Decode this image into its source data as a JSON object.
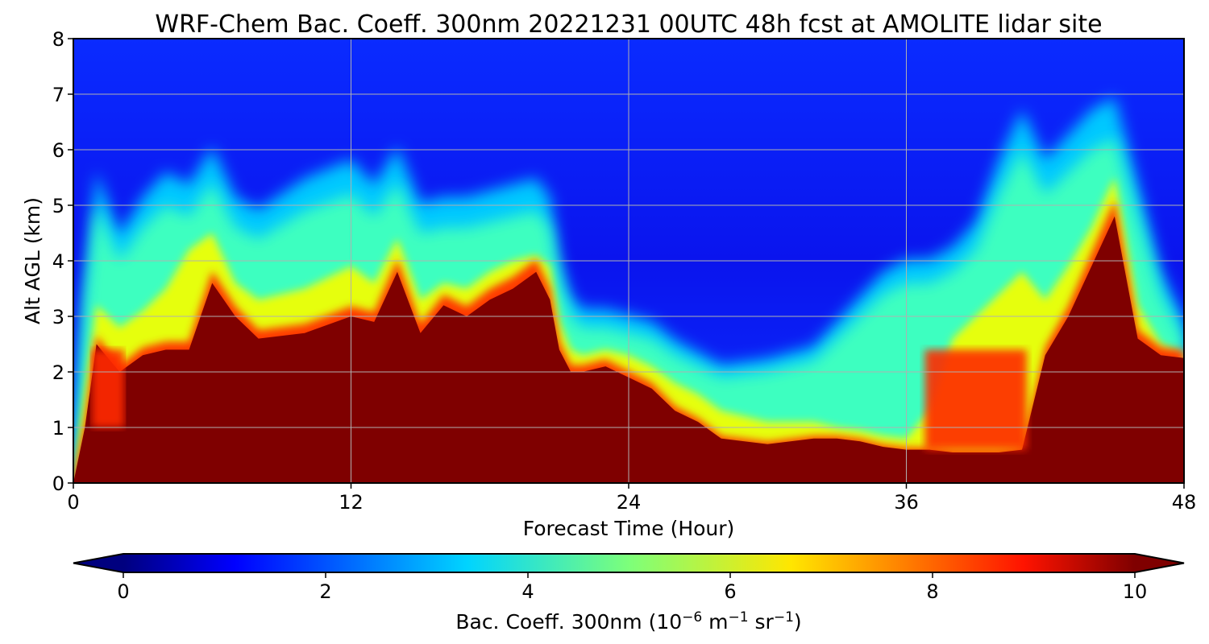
{
  "chart_data": {
    "type": "heatmap",
    "title": "WRF-Chem Bac. Coeff. 300nm  20221231 00UTC 48h fcst at AMOLITE lidar site",
    "xlabel": "Forecast Time (Hour)",
    "ylabel": "Alt AGL (km)",
    "xlim": [
      0,
      48
    ],
    "ylim": [
      0,
      8
    ],
    "xticks": [
      "0",
      "12",
      "24",
      "36",
      "48"
    ],
    "yticks": [
      "0",
      "1",
      "2",
      "3",
      "4",
      "5",
      "6",
      "7",
      "8"
    ],
    "grid": true,
    "colormap": "jet",
    "colorbar": {
      "label_prefix": "Bac. Coeff. 300nm  (10",
      "exp1": "−6",
      "mid1": " m",
      "exp2": "−1",
      "mid2": " sr",
      "exp3": "−1",
      "suffix": ")",
      "range": [
        0,
        10
      ],
      "ticks": [
        "0",
        "2",
        "4",
        "6",
        "8",
        "10"
      ],
      "extend": "both"
    },
    "times": [
      0,
      0.5,
      1,
      2,
      3,
      4,
      5,
      6,
      7,
      8,
      10,
      12,
      13,
      14,
      15,
      16,
      17,
      18,
      19,
      20,
      20.6,
      21,
      21.5,
      22,
      23,
      24,
      25,
      26,
      27,
      28,
      30,
      32,
      33,
      34,
      35,
      36,
      37,
      38,
      39,
      40,
      41,
      42,
      43,
      44,
      45,
      46,
      47,
      48
    ],
    "saturation_top_km": [
      0,
      1.0,
      2.5,
      2.0,
      2.3,
      2.4,
      2.4,
      3.6,
      3.0,
      2.6,
      2.7,
      3.0,
      2.9,
      3.8,
      2.7,
      3.2,
      3.0,
      3.3,
      3.5,
      3.8,
      3.3,
      2.4,
      2.0,
      2.0,
      2.1,
      1.9,
      1.7,
      1.3,
      1.1,
      0.8,
      0.7,
      0.8,
      0.8,
      0.75,
      0.65,
      0.6,
      0.6,
      0.55,
      0.55,
      0.55,
      0.6,
      2.3,
      3.0,
      3.9,
      4.8,
      2.6,
      2.3,
      2.25
    ],
    "orange_top_km": [
      0,
      1.6,
      3.2,
      2.8,
      3.1,
      3.5,
      4.2,
      4.5,
      3.6,
      3.3,
      3.5,
      3.9,
      3.6,
      4.4,
      3.3,
      3.6,
      3.5,
      3.8,
      4.0,
      4.1,
      3.9,
      2.9,
      2.4,
      2.3,
      2.4,
      2.3,
      2.1,
      1.8,
      1.6,
      1.3,
      1.1,
      1.1,
      1.0,
      0.95,
      0.85,
      0.8,
      1.3,
      2.6,
      3.0,
      3.4,
      3.8,
      3.3,
      3.9,
      4.6,
      5.5,
      3.2,
      2.5,
      2.3
    ],
    "green_top_km": [
      0,
      3.2,
      5.0,
      4.0,
      4.6,
      5.0,
      4.8,
      5.4,
      4.6,
      4.4,
      4.9,
      5.2,
      4.8,
      5.4,
      4.5,
      4.6,
      4.6,
      4.7,
      4.8,
      4.9,
      4.6,
      3.6,
      3.0,
      2.8,
      2.8,
      2.7,
      2.6,
      2.3,
      2.1,
      1.9,
      2.0,
      2.2,
      2.6,
      3.0,
      3.4,
      3.6,
      3.6,
      3.8,
      4.2,
      5.2,
      6.0,
      5.2,
      5.6,
      6.0,
      6.2,
      4.8,
      3.4,
      2.6
    ],
    "embedded_maxima": [
      {
        "t0": 0.8,
        "t1": 2.2,
        "z0": 1.0,
        "z1": 2.4
      },
      {
        "t0": 36.8,
        "t1": 41.2,
        "z0": 0.6,
        "z1": 2.4
      }
    ]
  }
}
